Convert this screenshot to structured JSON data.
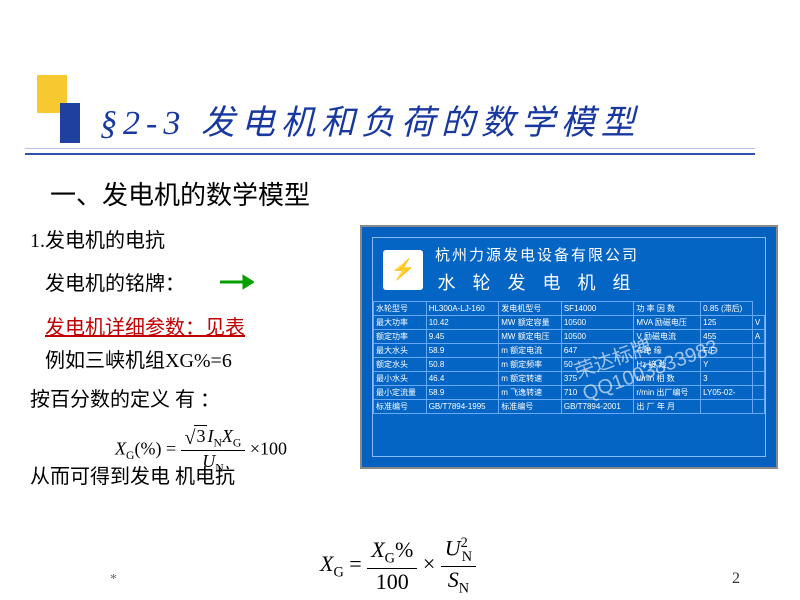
{
  "title": "§2-3 发电机和负荷的数学模型",
  "section": "一、发电机的数学模型",
  "item1": "1.发电机的电抗",
  "label_nameplate": "发电机的铭牌：",
  "link_text": "发电机详细参数：见表",
  "example": "例如三峡机组XG%=6",
  "def_text": "按百分数的定义 有 ：",
  "conclusion": "从而可得到发电 机电抗",
  "footer_star": "*",
  "page_num": "2",
  "nameplate": {
    "company": "杭州力源发电设备有限公司",
    "product": "水 轮 发 电 机 组",
    "watermark": "荣达标牌 QQ1003833983",
    "rows": [
      [
        "水轮型号",
        "HL300A-LJ-160",
        "发电机型号",
        "SF14000",
        "功 率 因 数",
        "0.85 (滞后)"
      ],
      [
        "最大功率",
        "10.42",
        "MW 额定容量",
        "10500",
        "MVA 励磁电压",
        "125",
        "V"
      ],
      [
        "额定功率",
        "9.45",
        "MW 额定电压",
        "10500",
        "V 励磁电流",
        "455",
        "A"
      ],
      [
        "最大水头",
        "58.9",
        "m 额定电流",
        "647",
        "A 绝 缘",
        "F/F",
        ""
      ],
      [
        "额定水头",
        "50.8",
        "m 额定频率",
        "50",
        "Hz 接 线",
        "Y",
        ""
      ],
      [
        "最小水头",
        "46.4",
        "m 额定转速",
        "375",
        "r/min 相 数",
        "3",
        ""
      ],
      [
        "最小定流量",
        "58.9",
        "m 飞逸转速",
        "710",
        "r/min 出厂编号",
        "LY05-02-",
        ""
      ],
      [
        "标准编号",
        "GB/T7894-1995",
        "标准编号",
        "GB/T7894-2001",
        "出 厂 年 月",
        "",
        ""
      ]
    ]
  },
  "formula1": {
    "lhs": "X",
    "lhs_sub": "G",
    "lhs_suffix": "(%)",
    "num_rad": "3",
    "num_I": "I",
    "num_I_sub": "N",
    "num_X": "X",
    "num_X_sub": "G",
    "den": "U",
    "den_sub": "N",
    "mult": "×100"
  },
  "formula2": {
    "lhs": "X",
    "lhs_sub": "G",
    "t1_num": "X",
    "t1_num_sub": "G",
    "t1_num_suffix": "%",
    "t1_den": "100",
    "t2_num": "U",
    "t2_num_sup": "2",
    "t2_num_sub": "N",
    "t2_den": "S",
    "t2_den_sub": "N"
  },
  "colors": {
    "title": "#1838a0",
    "link": "#c00000",
    "plate_bg": "#0560c0"
  }
}
